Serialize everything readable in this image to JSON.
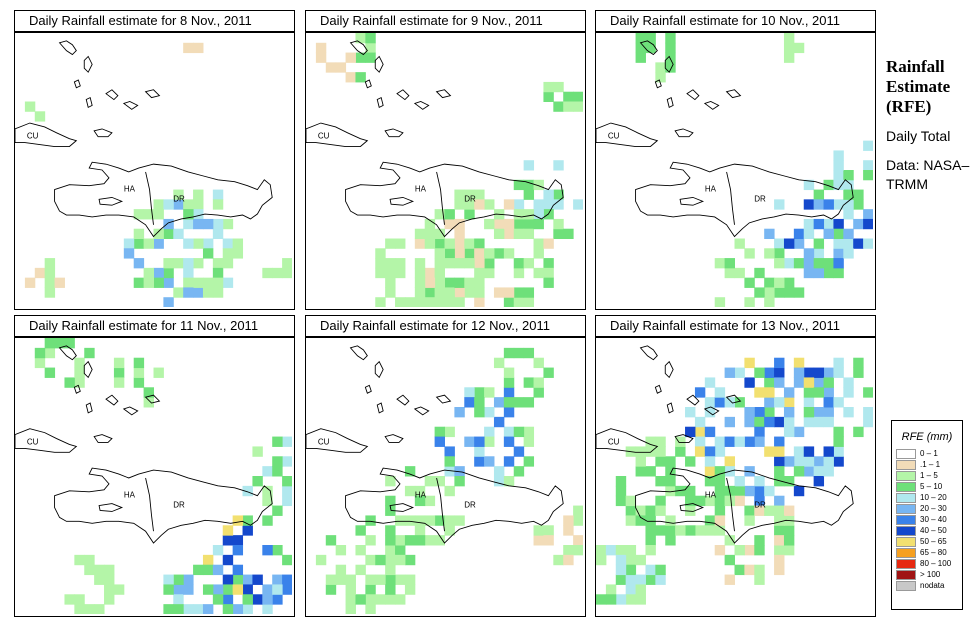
{
  "panels": [
    {
      "title": "Daily Rainfall estimate for  8 Nov., 2011"
    },
    {
      "title": "Daily Rainfall estimate for  9 Nov., 2011"
    },
    {
      "title": "Daily Rainfall estimate for  10 Nov., 2011"
    },
    {
      "title": "Daily Rainfall estimate for  11 Nov., 2011"
    },
    {
      "title": "Daily Rainfall estimate for  12 Nov., 2011"
    },
    {
      "title": "Daily Rainfall estimate for  13 Nov., 2011"
    }
  ],
  "map_labels": {
    "cu": "CU",
    "ha": "HA",
    "dr": "DR"
  },
  "side": {
    "title": "Rainfall Estimate (RFE)",
    "period": "Daily Total",
    "source": "Data: NASA–TRMM"
  },
  "legend": {
    "title": "RFE (mm)",
    "items": [
      {
        "label": "0 – 1",
        "color": "#ffffff"
      },
      {
        "label": ".1 – 1",
        "color": "#f2dcb8"
      },
      {
        "label": "1 – 5",
        "color": "#b4f5a8"
      },
      {
        "label": "5 – 10",
        "color": "#6ee07a"
      },
      {
        "label": "10 – 20",
        "color": "#b0e8ee"
      },
      {
        "label": "20 – 30",
        "color": "#78b6f2"
      },
      {
        "label": "30 – 40",
        "color": "#3a82ea"
      },
      {
        "label": "40 – 50",
        "color": "#1448cc"
      },
      {
        "label": "50 – 65",
        "color": "#f2e070"
      },
      {
        "label": "65 – 80",
        "color": "#f6a020"
      },
      {
        "label": "80 – 100",
        "color": "#e62810"
      },
      {
        "label": "> 100",
        "color": "#a01414"
      },
      {
        "label": "nodata",
        "color": "#c8c8c8"
      }
    ]
  }
}
